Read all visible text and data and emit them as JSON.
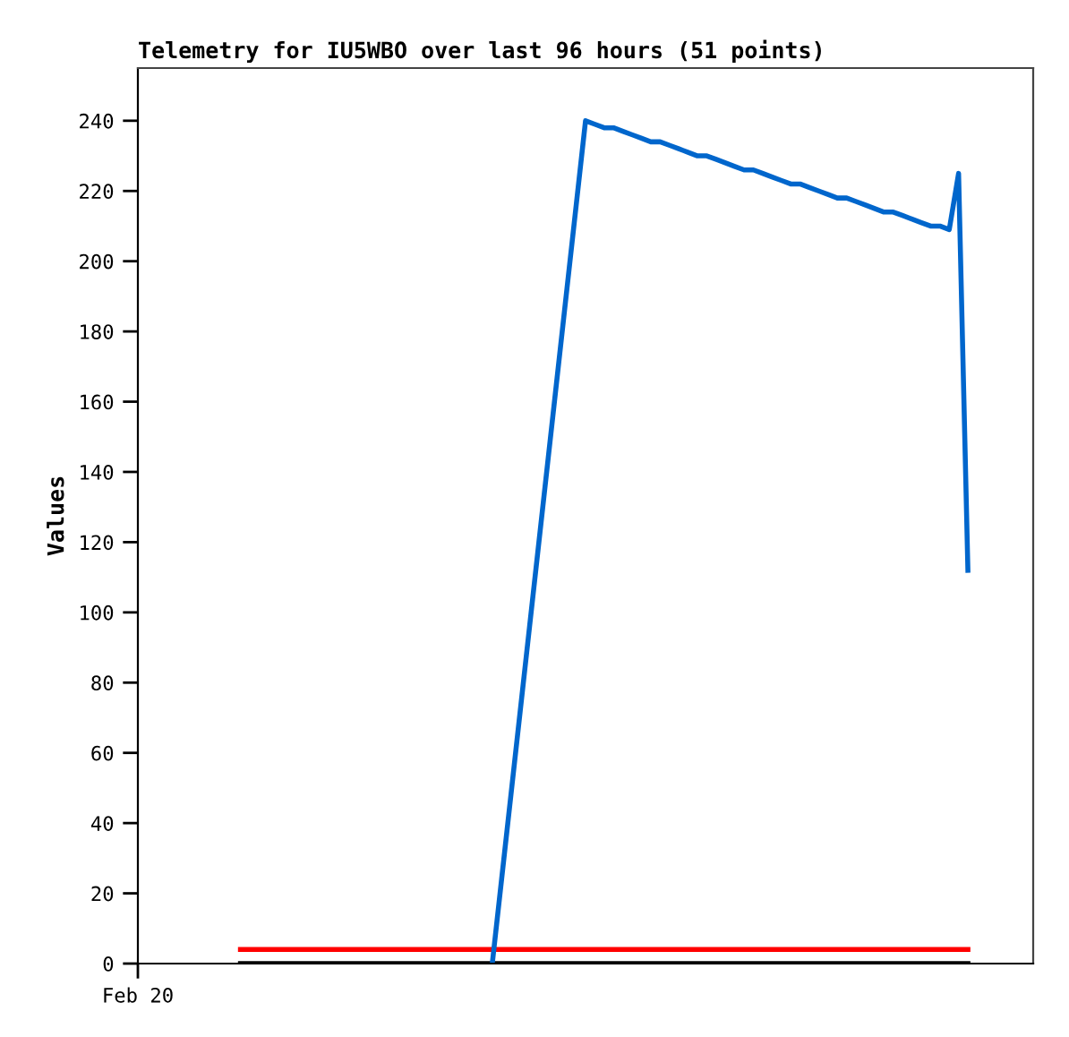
{
  "chart_data": {
    "type": "line",
    "title": "Telemetry for IU5WBO over last 96 hours (51 points)",
    "ylabel": "Values",
    "categories": [
      "Feb 20",
      null,
      null,
      null,
      null,
      null,
      null,
      null,
      null,
      null,
      null,
      null,
      null,
      null,
      null,
      null,
      null,
      null,
      null,
      null,
      null,
      null,
      null,
      null,
      null,
      null,
      null,
      null,
      null,
      null,
      null,
      null,
      null,
      null,
      null,
      null,
      null,
      null,
      null,
      null,
      null,
      null,
      null,
      null,
      null,
      null,
      null,
      null,
      null,
      null,
      null,
      null,
      null,
      null,
      null,
      null,
      null,
      null,
      null,
      null,
      null,
      null,
      null,
      null,
      null,
      null,
      null,
      null,
      null,
      null,
      null,
      null,
      null,
      null,
      null,
      null,
      null,
      null,
      null,
      null,
      null,
      null,
      null,
      null,
      null,
      null,
      null,
      null,
      null,
      null,
      null,
      null,
      null,
      null,
      null,
      null,
      null
    ],
    "ylim": [
      0,
      255
    ],
    "yticks": [
      0,
      20,
      40,
      60,
      80,
      100,
      120,
      140,
      160,
      180,
      200,
      220,
      240
    ],
    "grid": false,
    "series": [
      {
        "color": "#ff0000",
        "values": [
          null,
          null,
          null,
          null,
          null,
          null,
          null,
          null,
          null,
          null,
          null,
          4,
          4,
          4,
          4,
          4,
          4,
          4,
          4,
          4,
          4,
          4,
          4,
          4,
          4,
          4,
          4,
          4,
          4,
          4,
          4,
          4,
          4,
          4,
          4,
          4,
          4,
          4,
          4,
          4,
          4,
          4,
          4,
          4,
          4,
          4,
          4,
          4,
          4,
          4,
          4,
          4,
          4,
          4,
          4,
          4,
          4,
          4,
          4,
          4,
          4,
          4,
          4,
          4,
          4,
          4,
          4,
          4,
          4,
          4,
          4,
          4,
          4,
          4,
          4,
          4,
          4,
          4,
          4,
          4,
          4,
          4,
          4,
          4,
          4,
          4,
          4,
          4,
          4,
          4,
          null,
          null,
          null,
          null,
          null,
          null,
          null
        ]
      },
      {
        "color": "#000000",
        "values": [
          null,
          null,
          null,
          null,
          null,
          null,
          null,
          null,
          null,
          null,
          null,
          0,
          0,
          0,
          0,
          0,
          0,
          0,
          0,
          0,
          0,
          0,
          0,
          0,
          0,
          0,
          0,
          0,
          0,
          0,
          0,
          0,
          0,
          0,
          0,
          0,
          0,
          0,
          0,
          0,
          0,
          0,
          0,
          0,
          0,
          0,
          0,
          0,
          0,
          0,
          0,
          0,
          0,
          0,
          0,
          0,
          0,
          0,
          0,
          0,
          0,
          0,
          0,
          0,
          0,
          0,
          0,
          0,
          0,
          0,
          0,
          0,
          0,
          0,
          0,
          0,
          0,
          0,
          0,
          0,
          0,
          0,
          0,
          0,
          0,
          0,
          0,
          0,
          0,
          0,
          null,
          null,
          null,
          null,
          null,
          null,
          null
        ]
      },
      {
        "color": "#0066cc",
        "values": [
          null,
          null,
          null,
          null,
          null,
          null,
          null,
          null,
          null,
          null,
          null,
          null,
          null,
          null,
          null,
          null,
          null,
          null,
          null,
          null,
          null,
          null,
          null,
          null,
          null,
          null,
          null,
          null,
          null,
          null,
          null,
          null,
          null,
          null,
          null,
          null,
          null,
          null,
          0,
          24,
          48,
          72,
          96,
          120,
          144,
          168,
          192,
          216,
          240,
          239,
          238,
          238,
          237,
          236,
          235,
          234,
          234,
          233,
          232,
          231,
          230,
          230,
          229,
          228,
          227,
          226,
          226,
          225,
          224,
          223,
          222,
          222,
          221,
          220,
          219,
          218,
          218,
          217,
          216,
          215,
          214,
          214,
          213,
          212,
          211,
          210,
          210,
          209,
          225,
          112,
          null,
          null,
          null,
          null,
          null,
          null,
          null
        ]
      }
    ]
  }
}
